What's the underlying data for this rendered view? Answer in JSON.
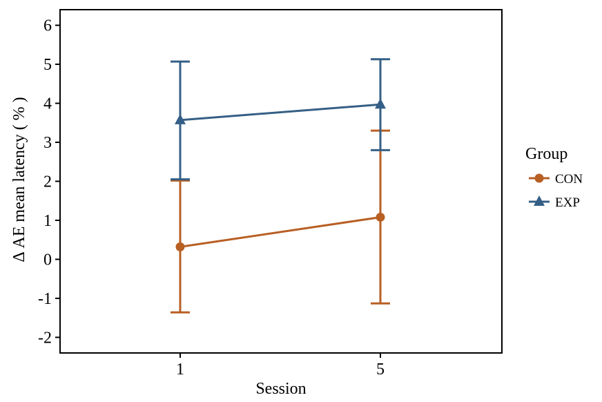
{
  "chart_data": {
    "type": "line",
    "xlabel": "Session",
    "ylabel": "Δ AE mean latency ( % )",
    "categories": [
      "1",
      "5"
    ],
    "ylim": [
      -2.4,
      6.4
    ],
    "yticks": [
      -2,
      -1,
      0,
      1,
      2,
      3,
      4,
      5,
      6
    ],
    "grid": false,
    "legend": {
      "title": "Group",
      "position": "right"
    },
    "series": [
      {
        "name": "CON",
        "color": "#b85f24",
        "marker": "circle",
        "values": [
          0.32,
          1.08
        ],
        "error_low": [
          -1.36,
          -1.13
        ],
        "error_high": [
          2.02,
          3.3
        ]
      },
      {
        "name": "EXP",
        "color": "#355f86",
        "marker": "triangle",
        "values": [
          3.57,
          3.97
        ],
        "error_low": [
          2.05,
          2.8
        ],
        "error_high": [
          5.07,
          5.13
        ]
      }
    ]
  }
}
